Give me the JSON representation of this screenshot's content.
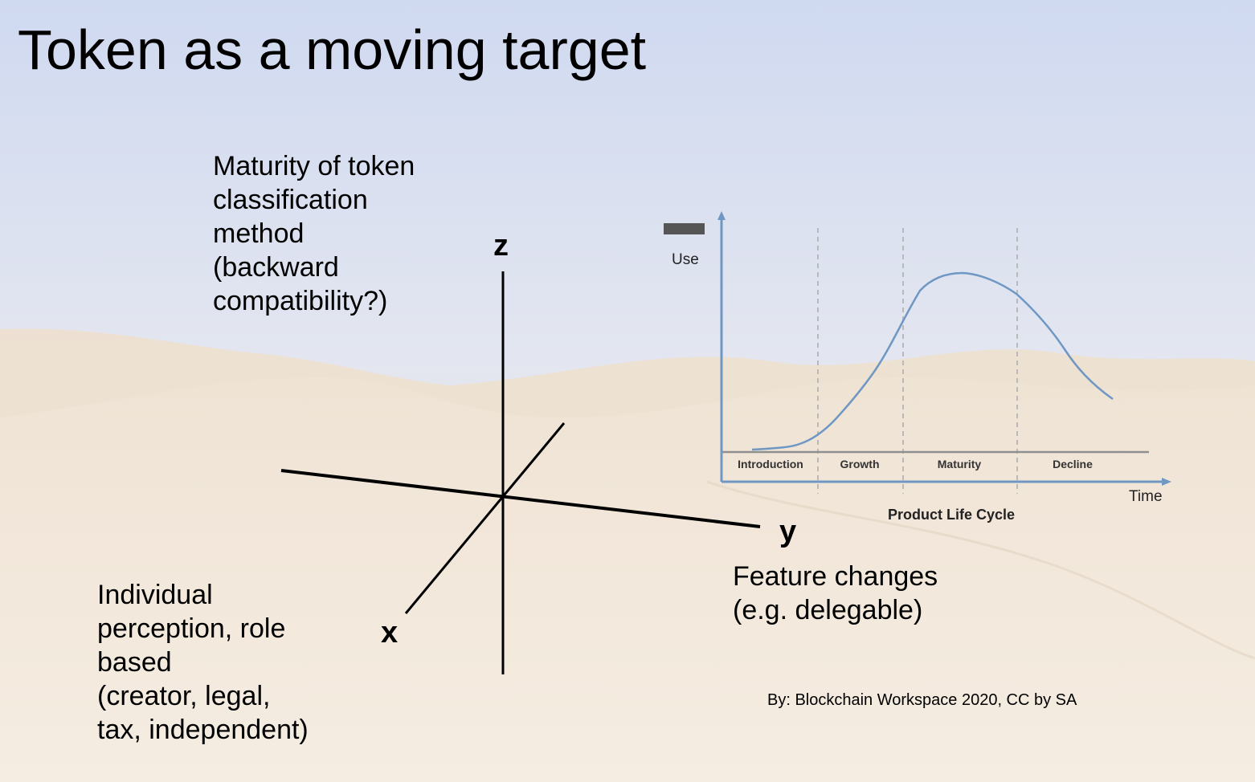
{
  "slide": {
    "title": "Token as a moving target",
    "z_description": [
      "Maturity of token",
      "classification",
      "method",
      "(backward",
      "compatibility?)"
    ],
    "x_description": [
      "Individual",
      "perception, role",
      "based",
      "(creator, legal,",
      "tax, independent)"
    ],
    "y_description": [
      "Feature changes",
      "(e.g. delegable)"
    ],
    "credit": "By: Blockchain Workspace 2020, CC by SA"
  },
  "axes": {
    "z_label": "z",
    "y_label": "y",
    "x_label": "x"
  },
  "product_life_cycle": {
    "title": "Product Life Cycle",
    "y_axis_label": "Use",
    "x_axis_label": "Time",
    "stages": [
      "Introduction",
      "Growth",
      "Maturity",
      "Decline"
    ]
  },
  "colors": {
    "sky_top": "#cfd9f0",
    "sky_bottom": "#ece7ea",
    "sand": "#efe2d0",
    "curve": "#6f97c3",
    "divider": "#b9b9b9"
  }
}
